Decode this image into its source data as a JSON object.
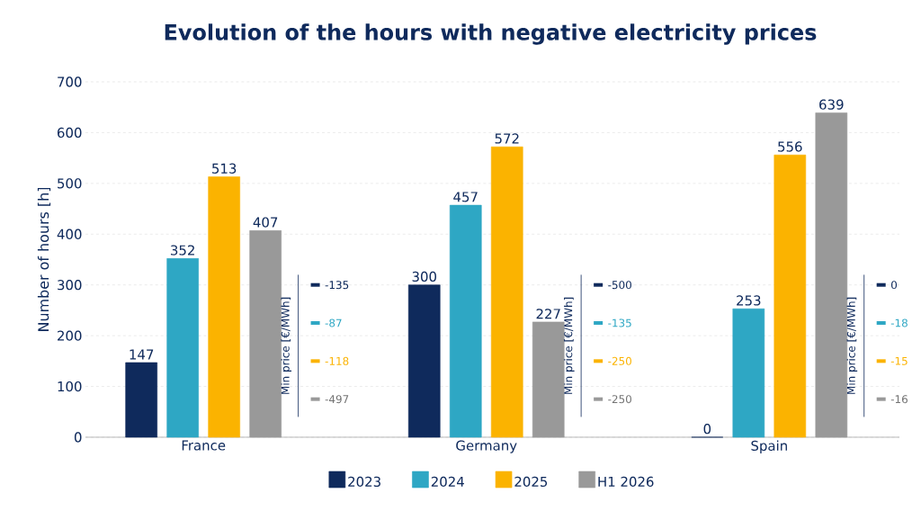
{
  "chart_data": {
    "type": "bar",
    "title": "Evolution of the hours with negative electricity prices",
    "ylabel": "Number of hours [h]",
    "categories": [
      "France",
      "Germany",
      "Spain"
    ],
    "series": [
      {
        "name": "2023",
        "color": "#0f2a5c",
        "values": [
          147,
          300,
          0
        ],
        "value_labels": [
          "147",
          "300",
          "0"
        ]
      },
      {
        "name": "2024",
        "color": "#2ea7c4",
        "values": [
          352,
          457,
          253
        ],
        "value_labels": [
          "352",
          "457",
          "253"
        ]
      },
      {
        "name": "2025",
        "color": "#fbb300",
        "values": [
          513,
          572,
          556
        ],
        "value_labels": [
          "513",
          "572",
          "556"
        ]
      },
      {
        "name": "H1 2026",
        "color": "#999999",
        "values": [
          407,
          227,
          639
        ],
        "value_labels": [
          "407",
          "227",
          "639"
        ]
      }
    ],
    "ylim": [
      0,
      700
    ],
    "yticks": [
      0,
      100,
      200,
      300,
      400,
      500,
      600,
      700
    ],
    "grid": "y",
    "legend": "bottom",
    "annotations": [
      "Min price [€/MWh]",
      "-135",
      "-87",
      "-118",
      "-497",
      "Min price [€/MWh]",
      "-500",
      "-135",
      "-250",
      "-250",
      "Min price [€/MWh]",
      "0",
      "-18",
      "-15",
      "-16"
    ]
  }
}
